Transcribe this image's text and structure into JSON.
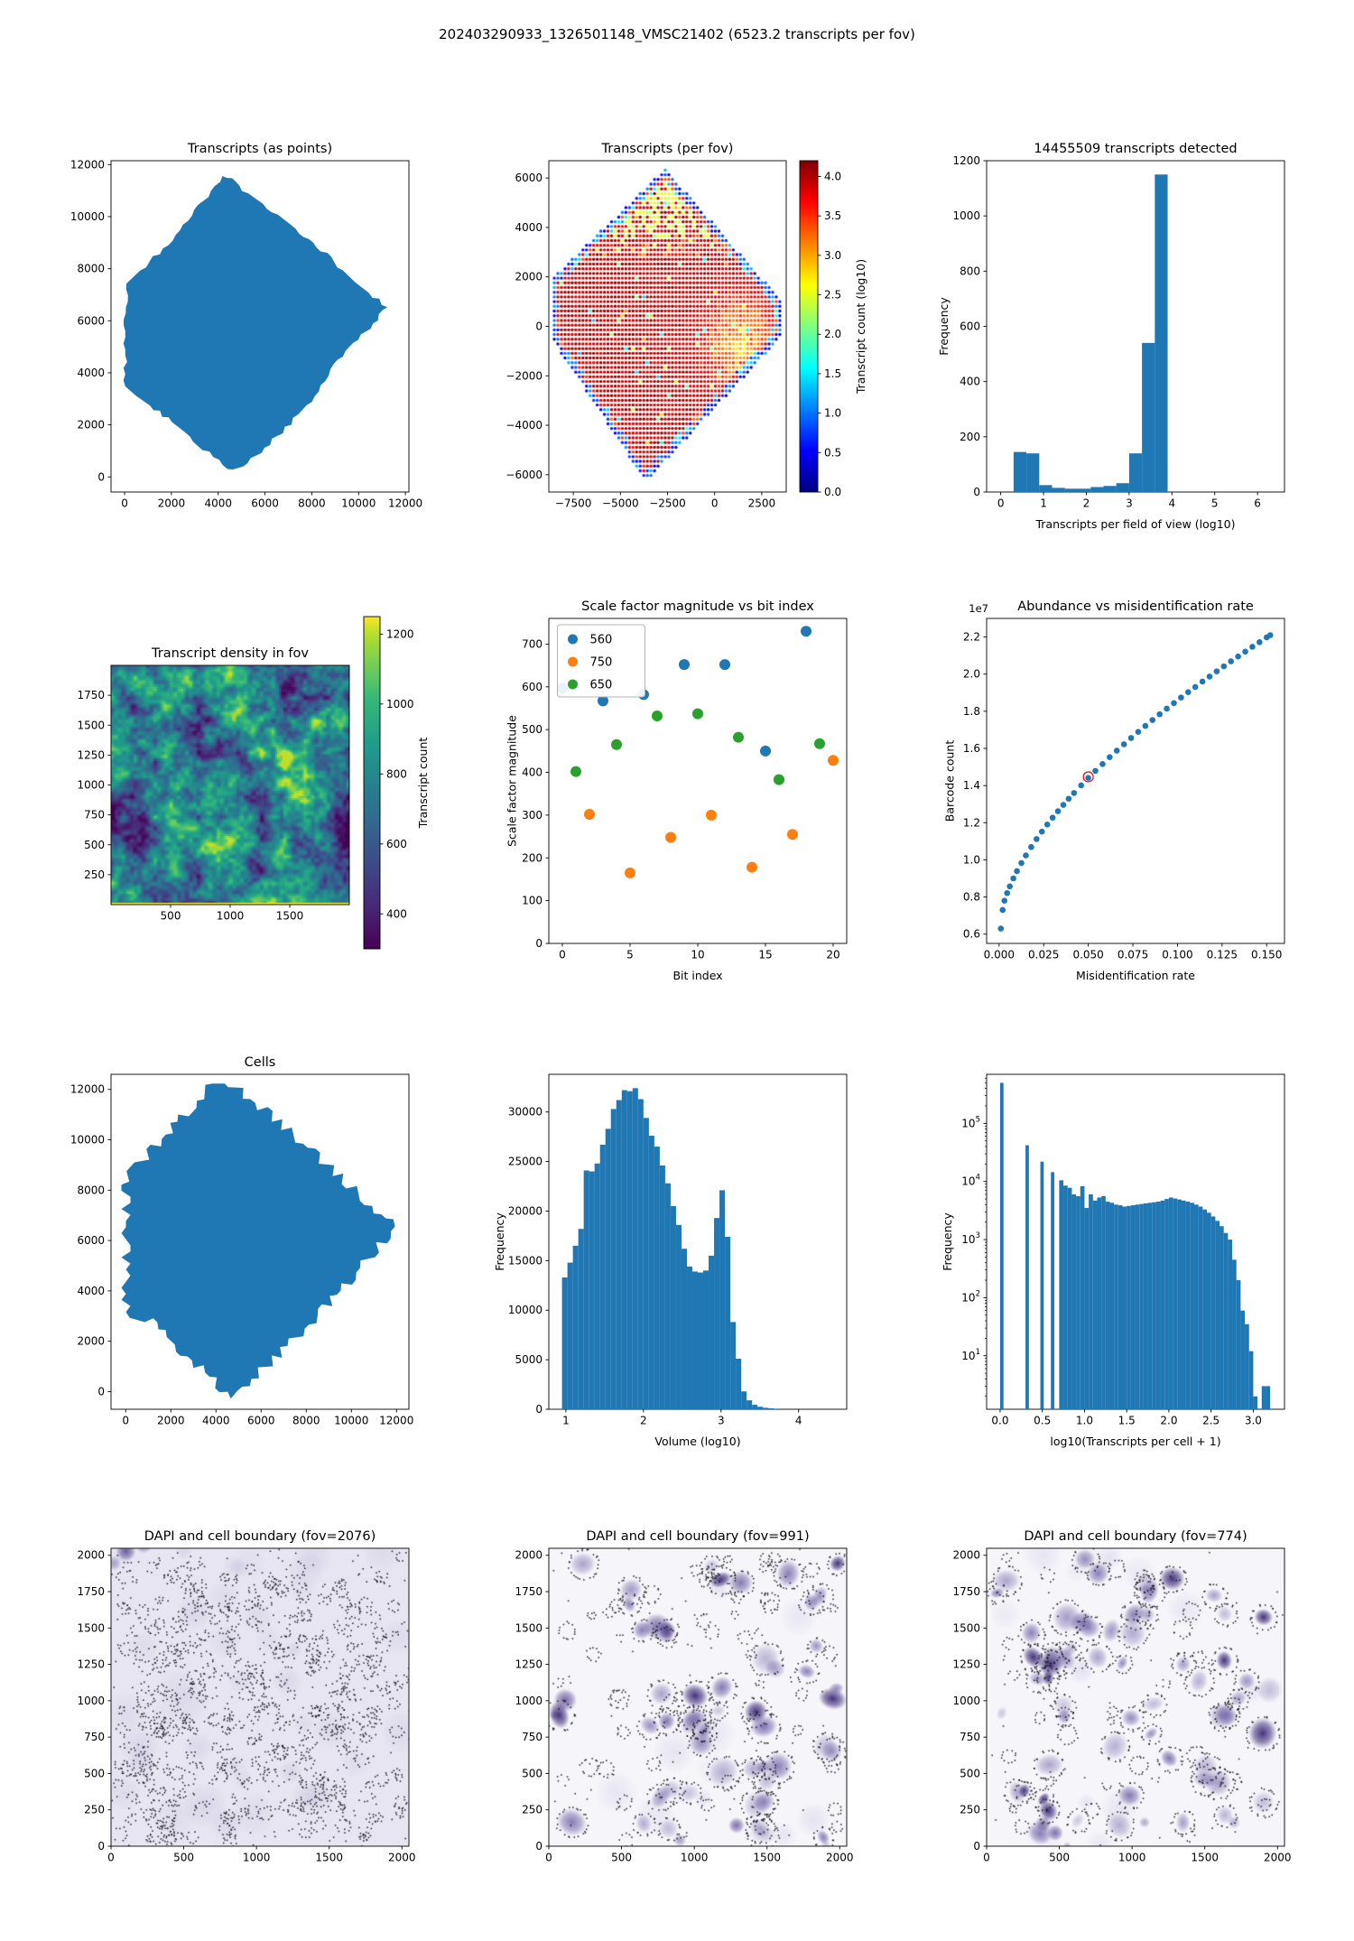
{
  "figure": {
    "title": "202403290933_1326501148_VMSC21402 (6523.2 transcripts per fov)"
  },
  "colors": {
    "primary_blue": "#1f77b4",
    "series_orange": "#ff7f0e",
    "series_green": "#2ca02c",
    "highlight_red": "#ff0000",
    "background": "#ffffff"
  },
  "chart_data": [
    {
      "id": "p1",
      "kind": "blob",
      "type": "scatter",
      "title": "Transcripts (as points)",
      "xlim": [
        -580,
        12150
      ],
      "ylim": [
        -580,
        12150
      ],
      "xticks": [
        0,
        2000,
        4000,
        6000,
        8000,
        10000,
        12000
      ],
      "yticks": [
        0,
        2000,
        4000,
        6000,
        8000,
        10000,
        12000
      ],
      "color": "#1f77b4",
      "edge_jitter": 2,
      "edge_step": 2,
      "seed": 3,
      "outline": [
        [
          30,
          3480
        ],
        [
          30,
          5600
        ],
        [
          80,
          7430
        ],
        [
          1450,
          8600
        ],
        [
          2550,
          9650
        ],
        [
          4180,
          11560
        ],
        [
          4760,
          11340
        ],
        [
          5060,
          11040
        ],
        [
          6550,
          10080
        ],
        [
          8250,
          8870
        ],
        [
          9850,
          7480
        ],
        [
          11230,
          6520
        ],
        [
          10150,
          5430
        ],
        [
          9000,
          4300
        ],
        [
          8300,
          3280
        ],
        [
          6900,
          1880
        ],
        [
          5250,
          520
        ],
        [
          4400,
          300
        ],
        [
          3580,
          920
        ],
        [
          2580,
          1720
        ],
        [
          1280,
          2620
        ],
        [
          480,
          3120
        ]
      ]
    },
    {
      "id": "p2",
      "kind": "fov-grid",
      "type": "scatter",
      "title": "Transcripts (per fov)",
      "xlim": [
        -8800,
        3800
      ],
      "ylim": [
        -6700,
        6700
      ],
      "xticks": [
        -7500,
        -5000,
        -2500,
        0,
        2500
      ],
      "yticks": [
        -6000,
        -4000,
        -2000,
        0,
        2000,
        4000,
        6000
      ],
      "grid_spacing": 190,
      "dot_radius": 1.7,
      "seed": 7,
      "value_range": [
        0,
        4.2
      ],
      "outline": [
        [
          -8560,
          -600
        ],
        [
          -8560,
          2000
        ],
        [
          -2620,
          6380
        ],
        [
          3650,
          950
        ],
        [
          3650,
          -350
        ],
        [
          -3650,
          -6280
        ]
      ],
      "low_count_patch": {
        "center": [
          1300,
          -600
        ],
        "radius": 2600,
        "depth": 1.35
      },
      "colorbar": {
        "label": "Transcript count (log10)",
        "cmap": "jet",
        "ticks": [
          0.0,
          0.5,
          1.0,
          1.5,
          2.0,
          2.5,
          3.0,
          3.5,
          4.0
        ],
        "tick_fmt": "f1"
      }
    },
    {
      "id": "p3",
      "kind": "hist",
      "type": "bar",
      "title": "14455509 transcripts detected",
      "xlabel": "Transcripts per field of view (log10)",
      "ylabel": "Frequency",
      "xlim": [
        -0.33,
        6.63
      ],
      "ylim": [
        0,
        1200
      ],
      "xticks": [
        0,
        1,
        2,
        3,
        4,
        5,
        6
      ],
      "yticks": [
        0,
        200,
        400,
        600,
        800,
        1000,
        1200
      ],
      "color": "#1f77b4",
      "bins": {
        "start": 0.3,
        "width": 0.3,
        "values": [
          145,
          140,
          25,
          15,
          12,
          12,
          18,
          22,
          32,
          140,
          540,
          1150
        ]
      }
    },
    {
      "id": "p4",
      "kind": "heatmap",
      "type": "heatmap",
      "title": "Transcript density in fov",
      "xlim": [
        0,
        2000
      ],
      "ylim": [
        0,
        2000
      ],
      "xticks": [
        500,
        1000,
        1500
      ],
      "yticks": [
        250,
        500,
        750,
        1000,
        1250,
        1500,
        1750
      ],
      "value_range": [
        300,
        1250
      ],
      "seed": 11,
      "colorbar": {
        "label": "Transcript count",
        "cmap": "viridis",
        "ticks": [
          400,
          600,
          800,
          1000,
          1200
        ],
        "tick_fmt": "int"
      }
    },
    {
      "id": "p5",
      "kind": "scatter-series",
      "type": "scatter",
      "title": "Scale factor magnitude vs bit index",
      "xlabel": "Bit index",
      "ylabel": "Scale factor magnitude",
      "xlim": [
        -1,
        21
      ],
      "ylim": [
        0,
        760
      ],
      "xticks": [
        0,
        5,
        10,
        15,
        20
      ],
      "yticks": [
        0,
        100,
        200,
        300,
        400,
        500,
        600,
        700
      ],
      "marker_radius": 6,
      "legend_position": "upper-left",
      "series": [
        {
          "name": "560",
          "color": "#1f77b4",
          "points": [
            [
              0,
              597
            ],
            [
              3,
              567
            ],
            [
              6,
              582
            ],
            [
              9,
              652
            ],
            [
              12,
              652
            ],
            [
              15,
              450
            ],
            [
              18,
              730
            ]
          ]
        },
        {
          "name": "750",
          "color": "#ff7f0e",
          "points": [
            [
              2,
              302
            ],
            [
              5,
              165
            ],
            [
              8,
              248
            ],
            [
              11,
              300
            ],
            [
              14,
              178
            ],
            [
              17,
              255
            ],
            [
              20,
              428
            ]
          ]
        },
        {
          "name": "650",
          "color": "#2ca02c",
          "points": [
            [
              1,
              402
            ],
            [
              4,
              465
            ],
            [
              7,
              532
            ],
            [
              10,
              537
            ],
            [
              13,
              482
            ],
            [
              16,
              383
            ],
            [
              19,
              467
            ]
          ]
        }
      ]
    },
    {
      "id": "p6",
      "kind": "scatter-curve",
      "type": "scatter",
      "title": "Abundance vs misidentification rate",
      "xlabel": "Misidentification rate",
      "ylabel": "Barcode count",
      "offset_text": "1e7",
      "xlim": [
        -0.007,
        0.16
      ],
      "ylim": [
        0.55,
        2.3
      ],
      "xticks": [
        0.0,
        0.025,
        0.05,
        0.075,
        0.1,
        0.125,
        0.15
      ],
      "xtick_fmt": "f3",
      "yticks": [
        0.6,
        0.8,
        1.0,
        1.2,
        1.4,
        1.6,
        1.8,
        2.0,
        2.2
      ],
      "ytick_fmt": "f1",
      "color": "#1f77b4",
      "marker_radius": 3.3,
      "points": [
        [
          0.001,
          0.63
        ],
        [
          0.002,
          0.73
        ],
        [
          0.003,
          0.78
        ],
        [
          0.0045,
          0.821
        ],
        [
          0.006,
          0.857
        ],
        [
          0.008,
          0.9
        ],
        [
          0.01,
          0.939
        ],
        [
          0.0125,
          0.983
        ],
        [
          0.015,
          1.024
        ],
        [
          0.018,
          1.069
        ],
        [
          0.021,
          1.112
        ],
        [
          0.024,
          1.152
        ],
        [
          0.027,
          1.19
        ],
        [
          0.03,
          1.227
        ],
        [
          0.033,
          1.262
        ],
        [
          0.036,
          1.296
        ],
        [
          0.039,
          1.329
        ],
        [
          0.042,
          1.36
        ],
        [
          0.046,
          1.401
        ],
        [
          0.05,
          1.441
        ],
        [
          0.054,
          1.479
        ],
        [
          0.058,
          1.516
        ],
        [
          0.062,
          1.553
        ],
        [
          0.066,
          1.588
        ],
        [
          0.07,
          1.622
        ],
        [
          0.074,
          1.656
        ],
        [
          0.078,
          1.689
        ],
        [
          0.082,
          1.721
        ],
        [
          0.086,
          1.753
        ],
        [
          0.09,
          1.784
        ],
        [
          0.094,
          1.814
        ],
        [
          0.098,
          1.844
        ],
        [
          0.102,
          1.874
        ],
        [
          0.106,
          1.903
        ],
        [
          0.11,
          1.931
        ],
        [
          0.114,
          1.96
        ],
        [
          0.118,
          1.987
        ],
        [
          0.122,
          2.015
        ],
        [
          0.126,
          2.042
        ],
        [
          0.13,
          2.069
        ],
        [
          0.134,
          2.095
        ],
        [
          0.138,
          2.121
        ],
        [
          0.142,
          2.147
        ],
        [
          0.146,
          2.172
        ],
        [
          0.15,
          2.198
        ],
        [
          0.152,
          2.21
        ]
      ],
      "highlight": {
        "point": [
          0.05,
          1.447
        ],
        "color": "#ff0000"
      }
    },
    {
      "id": "p7",
      "kind": "blob",
      "type": "scatter",
      "title": "Cells",
      "xlim": [
        -650,
        12550
      ],
      "ylim": [
        -700,
        12600
      ],
      "xticks": [
        0,
        2000,
        4000,
        6000,
        8000,
        10000,
        12000
      ],
      "yticks": [
        0,
        2000,
        4000,
        6000,
        8000,
        10000,
        12000
      ],
      "color": "#1f77b4",
      "edge_jitter": 6,
      "edge_step": 5,
      "seed": 5,
      "outline": [
        [
          10,
          3160
        ],
        [
          10,
          8460
        ],
        [
          1950,
          10380
        ],
        [
          3850,
          12230
        ],
        [
          4660,
          12230
        ],
        [
          6600,
          10850
        ],
        [
          8900,
          9020
        ],
        [
          11930,
          6550
        ],
        [
          9700,
          4180
        ],
        [
          8500,
          3010
        ],
        [
          6600,
          1300
        ],
        [
          4750,
          -120
        ],
        [
          4290,
          110
        ],
        [
          2550,
          1560
        ],
        [
          900,
          2930
        ]
      ]
    },
    {
      "id": "p8",
      "kind": "hist",
      "type": "bar",
      "title": "",
      "xlabel": "Volume (log10)",
      "ylabel": "Frequency",
      "xlim": [
        0.78,
        4.62
      ],
      "ylim": [
        0,
        33800
      ],
      "xticks": [
        1,
        2,
        3,
        4
      ],
      "yticks": [
        0,
        5000,
        10000,
        15000,
        20000,
        25000,
        30000
      ],
      "color": "#1f77b4",
      "bins": {
        "start": 0.95,
        "width": 0.07,
        "values": [
          13300,
          14800,
          16500,
          18200,
          24100,
          24000,
          24800,
          26700,
          28300,
          30300,
          31200,
          32200,
          32100,
          32400,
          31300,
          29400,
          27600,
          26500,
          24600,
          22800,
          20500,
          18600,
          16200,
          14400,
          13900,
          13800,
          14000,
          15500,
          19300,
          22100,
          17400,
          8800,
          5100,
          1800,
          900,
          450,
          250,
          150,
          100,
          60
        ]
      }
    },
    {
      "id": "p9",
      "kind": "hist-log",
      "type": "bar",
      "title": "",
      "xlabel": "log10(Transcripts per cell + 1)",
      "ylabel": "Frequency",
      "xlim": [
        -0.16,
        3.37
      ],
      "ylim": [
        1.2,
        700000
      ],
      "xticks": [
        0.0,
        0.5,
        1.0,
        1.5,
        2.0,
        2.5,
        3.0
      ],
      "xtick_fmt": "f1",
      "ytick_exponents": [
        1,
        2,
        3,
        4,
        5
      ],
      "color": "#1f77b4",
      "isolated_bars": {
        "width": 0.04,
        "bars": [
          [
            0.0,
            500000
          ],
          [
            0.301,
            42000
          ],
          [
            0.477,
            22000
          ],
          [
            0.602,
            14500
          ]
        ]
      },
      "bins": {
        "start": 0.7,
        "width": 0.05,
        "values": [
          10500,
          8500,
          7800,
          6000,
          5600,
          8300,
          3500,
          6000,
          4700,
          5300,
          5600,
          4500,
          4300,
          4000,
          3900,
          3700,
          3800,
          3900,
          4000,
          4100,
          4200,
          4300,
          4400,
          4500,
          4700,
          5000,
          5300,
          5100,
          4900,
          4700,
          4500,
          4300,
          4000,
          3700,
          3300,
          2900,
          2500,
          2100,
          1700,
          1300,
          1000,
          450,
          200,
          60,
          35,
          12,
          2,
          0,
          3,
          3
        ]
      }
    },
    {
      "id": "p10",
      "kind": "dapi",
      "type": "scatter",
      "title": "DAPI and cell boundary (fov=2076)",
      "xlim": [
        0,
        2048
      ],
      "ylim": [
        0,
        2048
      ],
      "xticks": [
        0,
        500,
        1000,
        1500,
        2000
      ],
      "yticks": [
        0,
        250,
        500,
        750,
        1000,
        1250,
        1500,
        1750,
        2000
      ],
      "image": {
        "bg": "#e7e5f1",
        "haze": 40,
        "nuclei": 0,
        "rings": 0,
        "clusters": 330,
        "singles": 380,
        "dark_frac": 0,
        "smudges": [
          [
            0.05,
            0.99,
            11,
            0.85
          ],
          [
            0.11,
            1.01,
            9,
            0.55
          ],
          [
            0.01,
            0.95,
            8,
            0.45
          ]
        ],
        "seed": 21
      }
    },
    {
      "id": "p11",
      "kind": "dapi",
      "type": "scatter",
      "title": "DAPI and cell boundary (fov=991)",
      "xlim": [
        0,
        2048
      ],
      "ylim": [
        0,
        2048
      ],
      "xticks": [
        0,
        500,
        1000,
        1500,
        2000
      ],
      "yticks": [
        0,
        250,
        500,
        750,
        1000,
        1250,
        1500,
        1750,
        2000
      ],
      "image": {
        "bg": "#f6f5fa",
        "haze": 12,
        "nuclei": 52,
        "rings": 24,
        "clusters": 30,
        "singles": 70,
        "dark_frac": 0.2,
        "cluster_region": [
          0.5,
          1.0,
          0.6,
          1.0
        ],
        "cluster_bias": 0.7,
        "smudges": [
          [
            0.055,
            0.49,
            13,
            0.8
          ],
          [
            0.63,
            0.07,
            9,
            0.75
          ],
          [
            0.44,
            0.02,
            7,
            0.5
          ],
          [
            0.02,
            0.44,
            6,
            0.5
          ],
          [
            0.93,
            0.0,
            6,
            0.3
          ]
        ],
        "seed": 33
      }
    },
    {
      "id": "p12",
      "kind": "dapi",
      "type": "scatter",
      "title": "DAPI and cell boundary (fov=774)",
      "xlim": [
        0,
        2048
      ],
      "ylim": [
        0,
        2048
      ],
      "xticks": [
        0,
        500,
        1000,
        1500,
        2000
      ],
      "yticks": [
        0,
        250,
        500,
        750,
        1000,
        1250,
        1500,
        1750,
        2000
      ],
      "image": {
        "bg": "#f6f5fa",
        "haze": 14,
        "nuclei": 60,
        "rings": 16,
        "clusters": 14,
        "singles": 60,
        "dark_frac": 0.22,
        "smudges": [
          [
            0.19,
            0.075,
            9,
            0.7
          ],
          [
            0.23,
            0.045,
            9,
            0.75
          ],
          [
            0.53,
            0.08,
            6,
            0.45
          ],
          [
            0.83,
            0.08,
            7,
            0.4
          ],
          [
            0.27,
            0.0,
            5,
            0.4
          ]
        ],
        "seed": 55
      }
    }
  ]
}
